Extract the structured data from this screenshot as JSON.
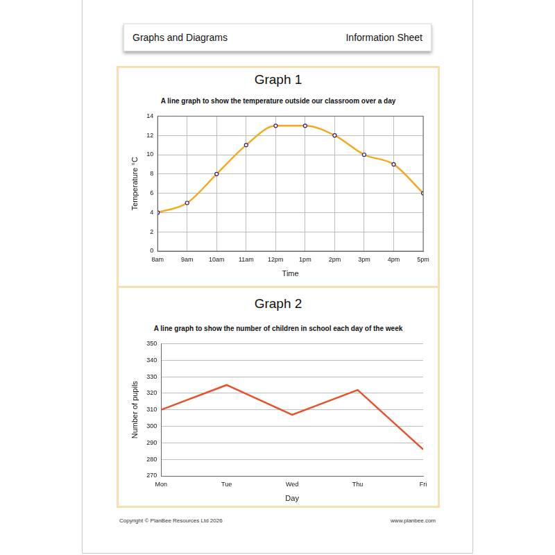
{
  "header": {
    "left": "Graphs and Diagrams",
    "right": "Information Sheet"
  },
  "chart_data": [
    {
      "type": "line",
      "title": "Graph 1",
      "subtitle": "A line graph to show the temperature outside our classroom over a day",
      "x_label": "Time",
      "y_label": "Temperature °C",
      "categories": [
        "8am",
        "9am",
        "10am",
        "11am",
        "12pm",
        "1pm",
        "2pm",
        "3pm",
        "4pm",
        "5pm"
      ],
      "values": [
        4,
        5,
        8,
        11,
        13,
        13,
        12,
        10,
        9,
        6
      ],
      "color": "#f2aa1c",
      "marker": "circle",
      "line_style": "smooth",
      "ylim": [
        0,
        14
      ],
      "yticks": [
        0,
        2,
        4,
        6,
        8,
        10,
        12,
        14
      ],
      "grid": true
    },
    {
      "type": "line",
      "title": "Graph 2",
      "subtitle": "A line graph to show the number of children in school each day of the week",
      "x_label": "Day",
      "y_label": "Number of pupils",
      "categories": [
        "Mon",
        "Tue",
        "Wed",
        "Thu",
        "Fri"
      ],
      "values": [
        310,
        325,
        307,
        322,
        286
      ],
      "color": "#e8502a",
      "marker": "none",
      "line_style": "solid",
      "ylim": [
        270,
        350
      ],
      "yticks": [
        270,
        280,
        290,
        300,
        310,
        320,
        330,
        340,
        350
      ],
      "grid": "y"
    }
  ],
  "footer": {
    "left": "Copyright © PlanBee Resources Ltd 2026",
    "right": "www.planbee.com"
  }
}
